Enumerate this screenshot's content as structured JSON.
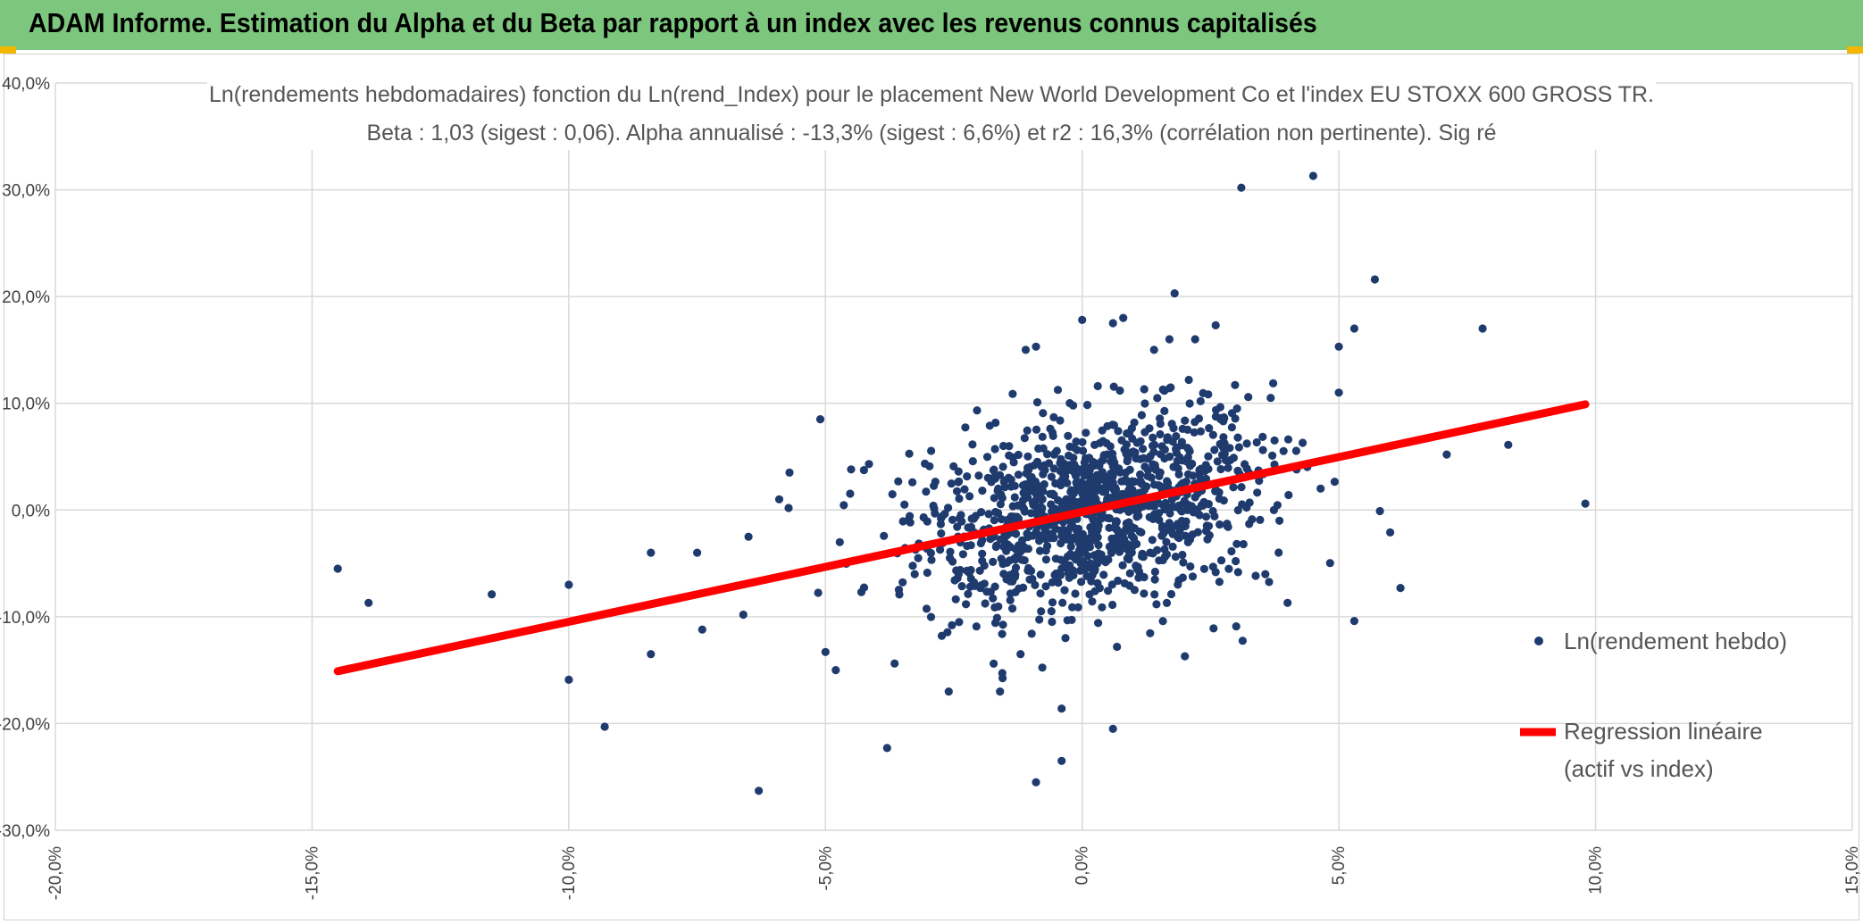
{
  "header": {
    "title": "ADAM Informe. Estimation du Alpha et du Beta par rapport à un index avec les revenus connus capitalisés"
  },
  "colors": {
    "header_bg": "#7dc67d",
    "accent_corner": "#f2b800",
    "points": "#1f3b6e",
    "regression": "#ff0000",
    "grid": "#d9d9d9"
  },
  "chart_data": {
    "type": "scatter",
    "title_line1": "Ln(rendements hebdomadaires) fonction du Ln(rend_Index) pour le placement New World Development Co  et l'index EU STOXX 600 GROSS TR.",
    "title_line2": "Beta : 1,03 (sigest : 0,06). Alpha annualisé : -13,3% (sigest : 6,6%) et r2 : 16,3% (corrélation non pertinente). Sig ré",
    "xlabel": "",
    "ylabel": "",
    "xlim": [
      -20,
      15
    ],
    "ylim": [
      -30,
      40
    ],
    "x_ticks": [
      -20,
      -15,
      -10,
      -5,
      0,
      5,
      10,
      15
    ],
    "y_ticks": [
      -30,
      -20,
      -10,
      0,
      10,
      20,
      30,
      40
    ],
    "x_tick_labels": [
      "-20,0%",
      "-15,0%",
      "-10,0%",
      "-5,0%",
      "0,0%",
      "5,0%",
      "10,0%",
      "15,0%"
    ],
    "y_tick_labels": [
      "-30,0%",
      "-20,0%",
      "-10,0%",
      "0,0%",
      "10,0%",
      "20,0%",
      "30,0%",
      "40,0%"
    ],
    "grid": true,
    "legend_position": "right",
    "series": [
      {
        "name": "Ln(rendement hebdo)",
        "kind": "scatter",
        "note": "outliers read off the chart; dense central cluster generated from these statistics",
        "outliers": [
          [
            -14.5,
            -5.5
          ],
          [
            -13.9,
            -8.7
          ],
          [
            -11.5,
            -7.9
          ],
          [
            -10.0,
            -7.0
          ],
          [
            -10.0,
            -15.9
          ],
          [
            -9.3,
            -20.3
          ],
          [
            -8.4,
            -4.0
          ],
          [
            -8.4,
            -13.5
          ],
          [
            -7.5,
            -4.0
          ],
          [
            -7.4,
            -11.2
          ],
          [
            -6.6,
            -9.8
          ],
          [
            -6.3,
            -26.3
          ],
          [
            -6.5,
            -2.5
          ],
          [
            -5.9,
            1.0
          ],
          [
            -5.7,
            3.5
          ],
          [
            -5.1,
            8.5
          ],
          [
            -5.0,
            -13.3
          ],
          [
            -4.8,
            -15.0
          ],
          [
            -3.8,
            -22.3
          ],
          [
            -4.5,
            3.8
          ],
          [
            -2.6,
            -17.0
          ],
          [
            -1.6,
            -17.0
          ],
          [
            -0.9,
            -25.5
          ],
          [
            -0.4,
            -23.5
          ],
          [
            -0.4,
            -18.6
          ],
          [
            0.6,
            -20.5
          ],
          [
            -1.1,
            15.0
          ],
          [
            -0.9,
            15.3
          ],
          [
            0.0,
            17.8
          ],
          [
            0.6,
            17.5
          ],
          [
            0.8,
            18.0
          ],
          [
            1.4,
            15.0
          ],
          [
            1.7,
            16.0
          ],
          [
            1.8,
            20.3
          ],
          [
            2.2,
            16.0
          ],
          [
            2.6,
            17.3
          ],
          [
            3.1,
            30.2
          ],
          [
            4.5,
            31.3
          ],
          [
            5.0,
            15.3
          ],
          [
            5.3,
            17.0
          ],
          [
            5.7,
            21.6
          ],
          [
            7.8,
            17.0
          ],
          [
            5.0,
            11.0
          ],
          [
            7.1,
            5.2
          ],
          [
            8.3,
            6.1
          ],
          [
            9.8,
            0.6
          ],
          [
            6.0,
            -2.1
          ],
          [
            6.2,
            -7.3
          ],
          [
            5.3,
            -10.4
          ],
          [
            5.8,
            -0.1
          ],
          [
            4.0,
            -8.7
          ],
          [
            3.0,
            -10.9
          ],
          [
            2.0,
            -13.7
          ]
        ],
        "cluster_x_mean": 0.2,
        "cluster_x_sd": 1.7,
        "cluster_y_sd": 4.4,
        "cluster_count": 1150
      },
      {
        "name": "Regression linéaire\n(actif vs index)",
        "legend_line1": "Regression linéaire",
        "legend_line2": "(actif vs index)",
        "kind": "line",
        "x": [
          -14.5,
          9.8
        ],
        "y": [
          -15.1,
          9.9
        ]
      }
    ],
    "regression_stats": {
      "beta": 1.03,
      "beta_sigest": 0.06,
      "alpha_annualized_pct": -13.3,
      "alpha_sigest_pct": 6.6,
      "r2_pct": 16.3
    }
  }
}
